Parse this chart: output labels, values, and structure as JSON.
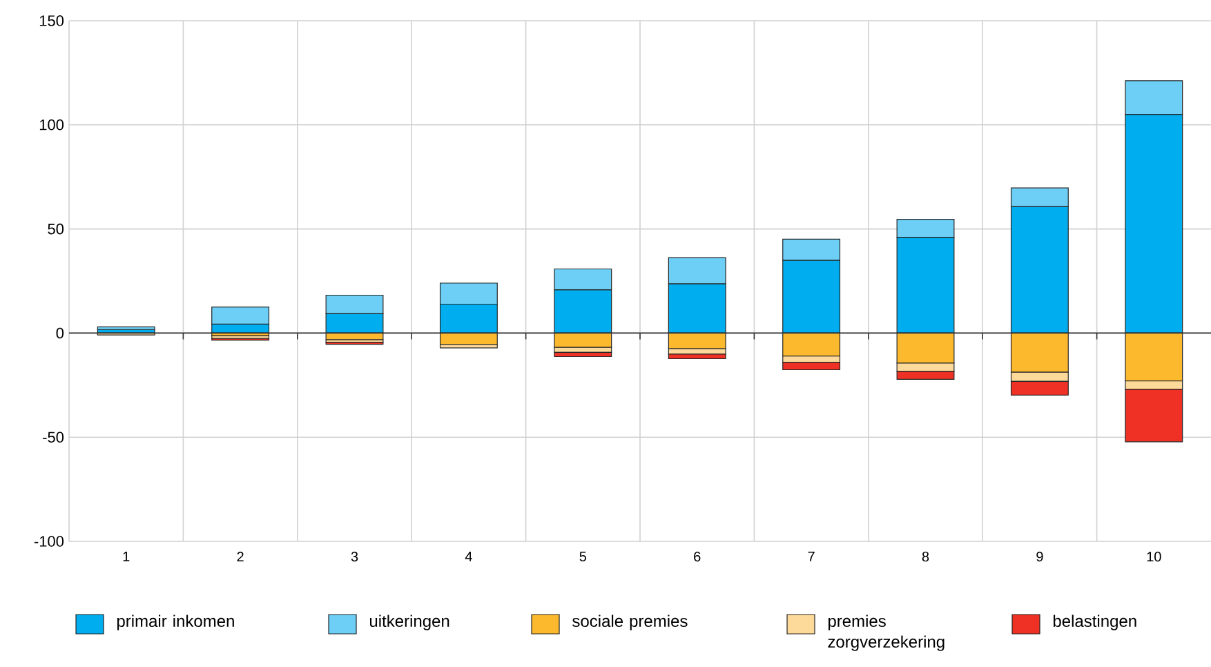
{
  "chart_data": {
    "type": "bar",
    "stacked": true,
    "categories": [
      "1",
      "2",
      "3",
      "4",
      "5",
      "6",
      "7",
      "8",
      "9",
      "10"
    ],
    "series": [
      {
        "name": "primair inkomen",
        "color": "#00aeef",
        "values": [
          1.7,
          4.3,
          9.4,
          13.9,
          20.8,
          23.7,
          35.0,
          46.0,
          60.8,
          105.0
        ]
      },
      {
        "name": "uitkeringen",
        "color": "#6dcff6",
        "values": [
          1.3,
          8.2,
          8.8,
          10.1,
          10.0,
          12.5,
          10.1,
          8.6,
          8.9,
          16.2
        ]
      },
      {
        "name": "sociale premies",
        "color": "#fdb92e",
        "values": [
          null,
          -1.3,
          -3.2,
          -5.5,
          -6.9,
          -7.5,
          -11.0,
          -14.4,
          -18.8,
          -23.0
        ]
      },
      {
        "name": "premies zorgverzekering",
        "color": "#fdd99a",
        "values": [
          -0.9,
          -1.3,
          -1.3,
          -1.6,
          -2.4,
          -2.6,
          -3.1,
          -4.0,
          -4.4,
          -4.0
        ]
      },
      {
        "name": "belastingen",
        "color": "#ee3124",
        "values": [
          null,
          -0.8,
          -0.9,
          null,
          -2.0,
          -2.2,
          -3.5,
          -3.8,
          -6.6,
          -25.2
        ]
      }
    ],
    "ylim": [
      -100,
      150
    ],
    "yticks": [
      -100,
      -50,
      0,
      50,
      100,
      150
    ],
    "grid": true,
    "legend": "bottom"
  }
}
